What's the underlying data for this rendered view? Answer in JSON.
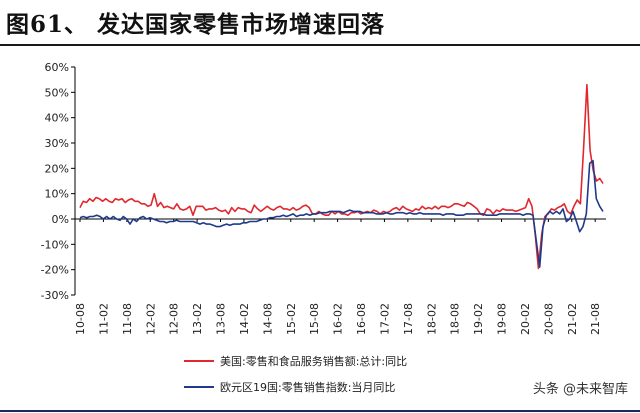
{
  "figure": {
    "title": "图61、 发达国家零售市场增速回落",
    "watermark": "头条 @未来智库"
  },
  "colors": {
    "us_series": "#e0282e",
    "eu_series": "#1f3a8a",
    "axis": "#000000"
  },
  "chart_data": {
    "type": "line",
    "ylim": [
      -30,
      60
    ],
    "yticks": [
      "60%",
      "50%",
      "40%",
      "30%",
      "20%",
      "10%",
      "0%",
      "-10%",
      "-20%",
      "-30%"
    ],
    "ytick_values": [
      60,
      50,
      40,
      30,
      20,
      10,
      0,
      -10,
      -20,
      -30
    ],
    "xticks": [
      "10-08",
      "11-02",
      "11-08",
      "12-02",
      "12-08",
      "13-02",
      "13-08",
      "14-02",
      "14-08",
      "15-02",
      "15-08",
      "16-02",
      "16-08",
      "17-02",
      "17-08",
      "18-02",
      "18-08",
      "19-02",
      "19-08",
      "20-02",
      "20-08",
      "21-02",
      "21-08"
    ],
    "x_start": "2010-08",
    "x_end": "2021-10",
    "legend_position": "bottom",
    "grid": false,
    "series": [
      {
        "name": "美国:零售和食品服务销售额:总计:同比",
        "values": [
          4.5,
          7,
          6.5,
          8,
          7,
          8.5,
          8,
          7,
          8,
          7,
          6.5,
          8,
          7.5,
          8,
          6.5,
          7.5,
          8,
          7,
          7,
          6,
          6,
          5,
          5.5,
          10,
          5,
          6.5,
          4.5,
          5,
          4.5,
          4,
          6,
          4,
          3.5,
          4,
          5,
          1.5,
          5,
          5,
          5,
          3.5,
          4,
          4,
          4.5,
          3.5,
          3,
          3.5,
          2,
          4.5,
          3,
          4.5,
          4,
          4,
          3,
          2.5,
          5.5,
          4,
          3,
          4,
          5,
          4,
          3.5,
          4.5,
          5,
          4,
          4,
          3.5,
          4.5,
          3.5,
          4,
          5,
          5.5,
          4.5,
          2,
          2,
          3,
          2,
          1.5,
          1.5,
          3,
          2,
          3,
          2,
          2,
          1.5,
          2.5,
          2.5,
          3,
          2,
          2.5,
          3,
          2.5,
          3.5,
          3,
          2,
          3,
          2.5,
          3,
          4,
          4.5,
          3.5,
          5,
          4,
          3.5,
          3,
          4,
          3.5,
          5,
          4,
          4.5,
          4,
          5,
          4,
          5,
          5,
          4.5,
          5,
          6,
          6,
          5.5,
          5,
          6.5,
          6,
          5,
          4,
          2,
          1.5,
          4,
          3.5,
          2,
          3.5,
          3,
          4,
          3.5,
          3.5,
          3.5,
          3,
          3.5,
          4,
          4.5,
          8,
          5,
          -6,
          -19.5,
          -6,
          1,
          2,
          4,
          3.5,
          4.5,
          5,
          6,
          3,
          2,
          5,
          7.5,
          6,
          28,
          53,
          27,
          19,
          15,
          16,
          14
        ]
      },
      {
        "name": "欧元区19国:零售销售指数:当月同比",
        "values": [
          0.5,
          1,
          0.5,
          1,
          1,
          1.5,
          1,
          0,
          1,
          0,
          1,
          0,
          -0.5,
          1,
          0,
          -2,
          0,
          -1,
          0.5,
          1,
          0,
          0.5,
          0,
          -0.5,
          -1,
          -1,
          -1.5,
          -1,
          -1,
          -0.5,
          -1,
          -1,
          -1,
          -1,
          -1,
          -1.5,
          -2,
          -1.5,
          -2,
          -2,
          -2.5,
          -3,
          -3,
          -2.5,
          -2,
          -2.5,
          -2,
          -2,
          -2,
          -1.5,
          -1.5,
          -1,
          -1,
          -1,
          -0.5,
          0,
          0,
          0.5,
          0.5,
          1,
          1,
          1.5,
          1,
          1.5,
          2,
          1,
          1.5,
          1.5,
          2,
          1.5,
          2,
          2,
          2.5,
          2.5,
          2.5,
          3,
          3,
          3,
          3,
          2.5,
          3,
          3.5,
          3,
          3,
          3,
          2.5,
          2.5,
          2.5,
          2.5,
          2,
          2,
          2,
          2.5,
          2,
          2,
          2.5,
          2.5,
          2.5,
          2,
          2.5,
          2,
          2,
          2.5,
          2,
          2,
          2,
          2,
          2,
          2,
          1.5,
          2,
          2,
          2,
          1.5,
          1.5,
          1.5,
          2,
          2,
          2,
          2,
          2,
          2,
          1.5,
          1.5,
          1.5,
          1.5,
          2,
          2,
          2,
          2,
          2,
          2,
          2,
          1.5,
          2,
          2,
          1.5,
          -9,
          -19,
          -3,
          1.5,
          3,
          2,
          3,
          2,
          4,
          -1,
          0,
          3,
          -1,
          -5,
          -3,
          2,
          22,
          23,
          8,
          5,
          3
        ]
      }
    ]
  }
}
